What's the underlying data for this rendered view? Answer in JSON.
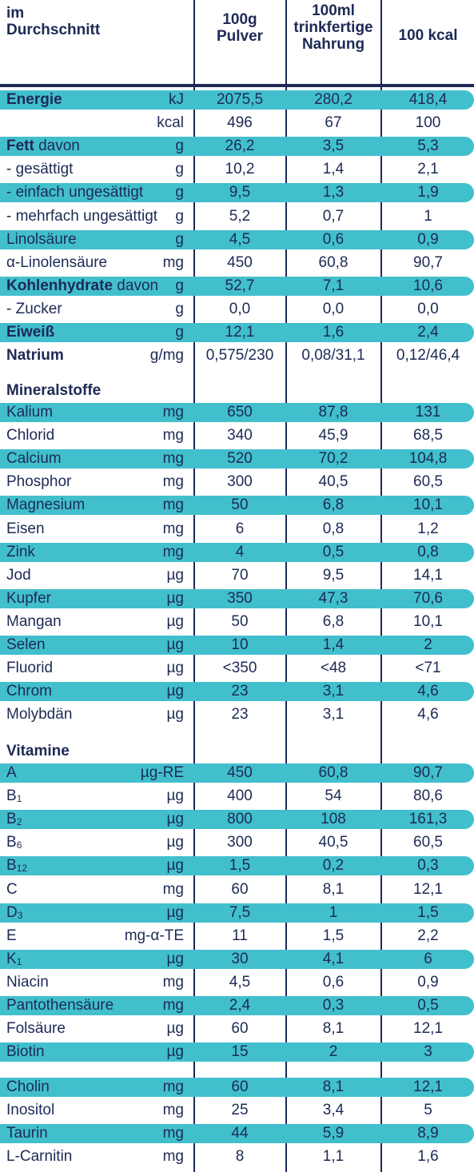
{
  "header": {
    "col_label": [
      "im",
      "Durchschnitt"
    ],
    "col1": [
      "100g",
      "Pulver"
    ],
    "col2": [
      "100ml",
      "trinkfertige",
      "Nahrung"
    ],
    "col3": "100 kcal"
  },
  "band_color": "#42bfcd",
  "ink_color": "#1d2a55",
  "blocks": [
    {
      "title": "",
      "rows": [
        {
          "label": "Energie",
          "bold": true,
          "unit": "kJ",
          "v": [
            "2075,5",
            "280,2",
            "418,4"
          ],
          "band": true
        },
        {
          "label": "",
          "unit": "kcal",
          "v": [
            "496",
            "67",
            "100"
          ],
          "band": false
        },
        {
          "label": "Fett",
          "bold": true,
          "suffix": " davon",
          "unit": "g",
          "v": [
            "26,2",
            "3,5",
            "5,3"
          ],
          "band": true
        },
        {
          "label": "- gesättigt",
          "unit": "g",
          "v": [
            "10,2",
            "1,4",
            "2,1"
          ],
          "band": false
        },
        {
          "label": "- einfach ungesättigt",
          "unit": "g",
          "v": [
            "9,5",
            "1,3",
            "1,9"
          ],
          "band": true
        },
        {
          "label": "- mehrfach ungesättigt",
          "unit": "g",
          "v": [
            "5,2",
            "0,7",
            "1"
          ],
          "band": false
        },
        {
          "label": "Linolsäure",
          "unit": "g",
          "v": [
            "4,5",
            "0,6",
            "0,9"
          ],
          "band": true
        },
        {
          "label": "α-Linolensäure",
          "unit": "mg",
          "v": [
            "450",
            "60,8",
            "90,7"
          ],
          "band": false
        },
        {
          "label": "Kohlenhydrate",
          "bold": true,
          "suffix": " davon",
          "unit": "g",
          "v": [
            "52,7",
            "7,1",
            "10,6"
          ],
          "band": true
        },
        {
          "label": "- Zucker",
          "unit": "g",
          "v": [
            "0,0",
            "0,0",
            "0,0"
          ],
          "band": false
        },
        {
          "label": "Eiweiß",
          "bold": true,
          "unit": "g",
          "v": [
            "12,1",
            "1,6",
            "2,4"
          ],
          "band": true
        },
        {
          "label": "Natrium",
          "bold": true,
          "unit": "g/mg",
          "v": [
            "0,575/230",
            "0,08/31,1",
            "0,12/46,4"
          ],
          "band": false
        }
      ]
    },
    {
      "title": "Mineralstoffe",
      "rows": [
        {
          "label": "Kalium",
          "unit": "mg",
          "v": [
            "650",
            "87,8",
            "131"
          ],
          "band": true
        },
        {
          "label": "Chlorid",
          "unit": "mg",
          "v": [
            "340",
            "45,9",
            "68,5"
          ],
          "band": false
        },
        {
          "label": "Calcium",
          "unit": "mg",
          "v": [
            "520",
            "70,2",
            "104,8"
          ],
          "band": true
        },
        {
          "label": "Phosphor",
          "unit": "mg",
          "v": [
            "300",
            "40,5",
            "60,5"
          ],
          "band": false
        },
        {
          "label": "Magnesium",
          "unit": "mg",
          "v": [
            "50",
            "6,8",
            "10,1"
          ],
          "band": true
        },
        {
          "label": "Eisen",
          "unit": "mg",
          "v": [
            "6",
            "0,8",
            "1,2"
          ],
          "band": false
        },
        {
          "label": "Zink",
          "unit": "mg",
          "v": [
            "4",
            "0,5",
            "0,8"
          ],
          "band": true
        },
        {
          "label": "Jod",
          "unit": "µg",
          "v": [
            "70",
            "9,5",
            "14,1"
          ],
          "band": false
        },
        {
          "label": "Kupfer",
          "unit": "µg",
          "v": [
            "350",
            "47,3",
            "70,6"
          ],
          "band": true
        },
        {
          "label": "Mangan",
          "unit": "µg",
          "v": [
            "50",
            "6,8",
            "10,1"
          ],
          "band": false
        },
        {
          "label": "Selen",
          "unit": "µg",
          "v": [
            "10",
            "1,4",
            "2"
          ],
          "band": true
        },
        {
          "label": "Fluorid",
          "unit": "µg",
          "v": [
            "<350",
            "<48",
            "<71"
          ],
          "band": false
        },
        {
          "label": "Chrom",
          "unit": "µg",
          "v": [
            "23",
            "3,1",
            "4,6"
          ],
          "band": true
        },
        {
          "label": "Molybdän",
          "unit": "µg",
          "v": [
            "23",
            "3,1",
            "4,6"
          ],
          "band": false
        }
      ]
    },
    {
      "title": "Vitamine",
      "rows": [
        {
          "label": "A",
          "unit": "µg-RE",
          "v": [
            "450",
            "60,8",
            "90,7"
          ],
          "band": true
        },
        {
          "label": "B",
          "sub": "1",
          "unit": "µg",
          "v": [
            "400",
            "54",
            "80,6"
          ],
          "band": false
        },
        {
          "label": "B",
          "sub": "2",
          "unit": "µg",
          "v": [
            "800",
            "108",
            "161,3"
          ],
          "band": true
        },
        {
          "label": "B",
          "sub": "6",
          "unit": "µg",
          "v": [
            "300",
            "40,5",
            "60,5"
          ],
          "band": false
        },
        {
          "label": "B",
          "sub": "12",
          "unit": "µg",
          "v": [
            "1,5",
            "0,2",
            "0,3"
          ],
          "band": true
        },
        {
          "label": "C",
          "unit": "mg",
          "v": [
            "60",
            "8,1",
            "12,1"
          ],
          "band": false
        },
        {
          "label": "D",
          "sub": "3",
          "unit": "µg",
          "v": [
            "7,5",
            "1",
            "1,5"
          ],
          "band": true
        },
        {
          "label": "E",
          "unit": "mg-α-TE",
          "v": [
            "11",
            "1,5",
            "2,2"
          ],
          "band": false
        },
        {
          "label": "K",
          "sub": "1",
          "unit": "µg",
          "v": [
            "30",
            "4,1",
            "6"
          ],
          "band": true
        },
        {
          "label": "Niacin",
          "unit": "mg",
          "v": [
            "4,5",
            "0,6",
            "0,9"
          ],
          "band": false
        },
        {
          "label": "Pantothensäure",
          "unit": "mg",
          "v": [
            "2,4",
            "0,3",
            "0,5"
          ],
          "band": true
        },
        {
          "label": "Folsäure",
          "unit": "µg",
          "v": [
            "60",
            "8,1",
            "12,1"
          ],
          "band": false
        },
        {
          "label": "Biotin",
          "unit": "µg",
          "v": [
            "15",
            "2",
            "3"
          ],
          "band": true
        }
      ]
    },
    {
      "title": "",
      "rows": [
        {
          "label": "Cholin",
          "unit": "mg",
          "v": [
            "60",
            "8,1",
            "12,1"
          ],
          "band": true
        },
        {
          "label": "Inositol",
          "unit": "mg",
          "v": [
            "25",
            "3,4",
            "5"
          ],
          "band": false
        },
        {
          "label": "Taurin",
          "unit": "mg",
          "v": [
            "44",
            "5,9",
            "8,9"
          ],
          "band": true
        },
        {
          "label": "L-Carnitin",
          "unit": "mg",
          "v": [
            "8",
            "1,1",
            "1,6"
          ],
          "band": false
        }
      ]
    }
  ]
}
